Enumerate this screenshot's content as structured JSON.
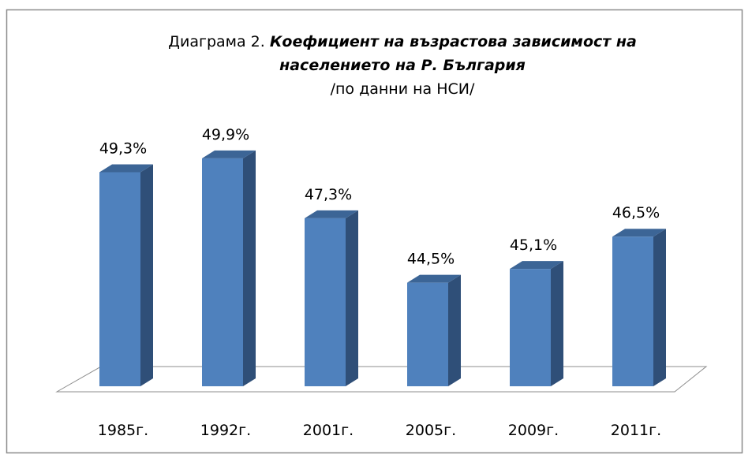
{
  "chart_data": {
    "type": "bar",
    "title": "Диаграма 2.",
    "title_emphasis": "Коефициент на възрастова зависимост на населението на Р. България",
    "subtitle": "/по данни на НСИ/",
    "categories": [
      "1985г.",
      "1992г.",
      "2001г.",
      "2005г.",
      "2009г.",
      "2011г."
    ],
    "values": [
      49.3,
      49.9,
      47.3,
      44.5,
      45.1,
      46.5
    ],
    "value_labels": [
      "49,3%",
      "49,9%",
      "47,3%",
      "44,5%",
      "45,1%",
      "46,5%"
    ],
    "color": "#4f81bd",
    "ylim": [
      40,
      55
    ]
  }
}
